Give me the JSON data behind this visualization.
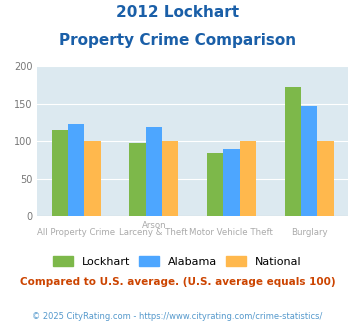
{
  "title_line1": "2012 Lockhart",
  "title_line2": "Property Crime Comparison",
  "cat_labels": [
    [
      "All Property Crime",
      ""
    ],
    [
      "Arson",
      "Larceny & Theft"
    ],
    [
      "Motor Vehicle Theft",
      ""
    ],
    [
      "Burglary",
      ""
    ]
  ],
  "lockhart": [
    115,
    98,
    84,
    172
  ],
  "alabama": [
    123,
    119,
    89,
    147
  ],
  "national": [
    100,
    100,
    100,
    100
  ],
  "color_lockhart": "#7db84a",
  "color_alabama": "#4da6ff",
  "color_national": "#ffb84d",
  "ylim": [
    0,
    200
  ],
  "yticks": [
    0,
    50,
    100,
    150,
    200
  ],
  "background_color": "#dce9f0",
  "fig_background": "#ffffff",
  "footnote": "Compared to U.S. average. (U.S. average equals 100)",
  "copyright": "© 2025 CityRating.com - https://www.cityrating.com/crime-statistics/",
  "title_color": "#1a5fa8",
  "footnote_color": "#cc4400",
  "copyright_color": "#5599cc",
  "xlabel_color": "#aaaaaa"
}
